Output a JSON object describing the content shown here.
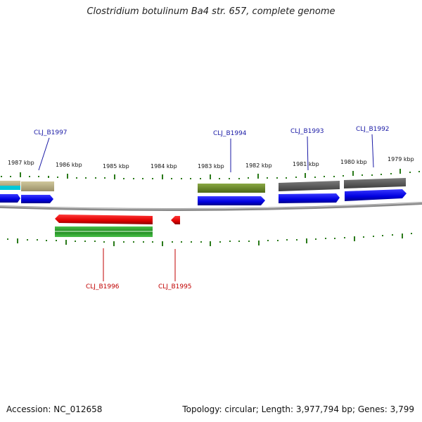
{
  "title": "Clostridium botulinum Ba4 str. 657, complete genome",
  "footer": {
    "accession": "Accession: NC_012658",
    "summary": "Topology: circular; Length: 3,977,794 bp; Genes: 3,799"
  },
  "scale_labels": [
    "1987 kbp",
    "1986 kbp",
    "1985 kbp",
    "1984 kbp",
    "1983 kbp",
    "1982 kbp",
    "1981 kbp",
    "1980 kbp",
    "1979 kbp"
  ],
  "genes_top": [
    {
      "id": "CLJ_B1997",
      "label": "CLJ_B1997"
    },
    {
      "id": "CLJ_B1994",
      "label": "CLJ_B1994"
    },
    {
      "id": "CLJ_B1993",
      "label": "CLJ_B1993"
    },
    {
      "id": "CLJ_B1992",
      "label": "CLJ_B1992"
    }
  ],
  "genes_bottom": [
    {
      "id": "CLJ_B1996",
      "label": "CLJ_B1996"
    },
    {
      "id": "CLJ_B1995",
      "label": "CLJ_B1995"
    }
  ],
  "colors": {
    "forward_label": "#1a1aa6",
    "reverse_label": "#c00000",
    "cds_forward": "#0000ee",
    "cds_reverse": "#ee0000",
    "gene_olive": "#6b8a2a",
    "gene_tan": "#b8b084",
    "gene_gray": "#5a5a5a",
    "gene_green": "#2a9a2a",
    "rna_cyan": "#00c8d8",
    "backbone": "#8a8a8a",
    "tick": "#2a7a1a"
  }
}
